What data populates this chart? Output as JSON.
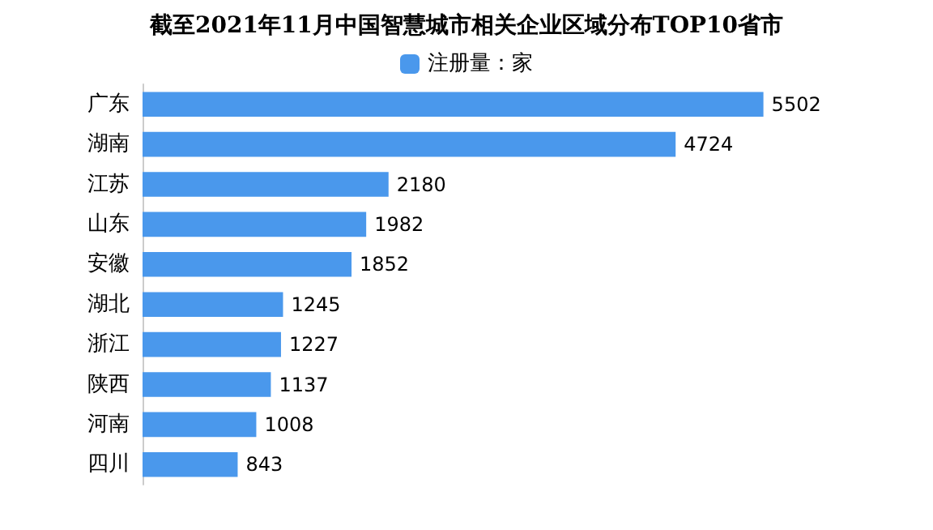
{
  "chart_data": {
    "type": "bar",
    "orientation": "horizontal",
    "title": "截至2021年11月中国智慧城市相关企业区域分布TOP10省市",
    "categories": [
      "广东",
      "湖南",
      "江苏",
      "山东",
      "安徽",
      "湖北",
      "浙江",
      "陕西",
      "河南",
      "四川"
    ],
    "series": [
      {
        "name": "注册量：家",
        "color": "#4a98ec",
        "values": [
          5502,
          4724,
          2180,
          1982,
          1852,
          1245,
          1227,
          1137,
          1008,
          843
        ]
      }
    ],
    "data_labels": true,
    "legend": "top"
  }
}
